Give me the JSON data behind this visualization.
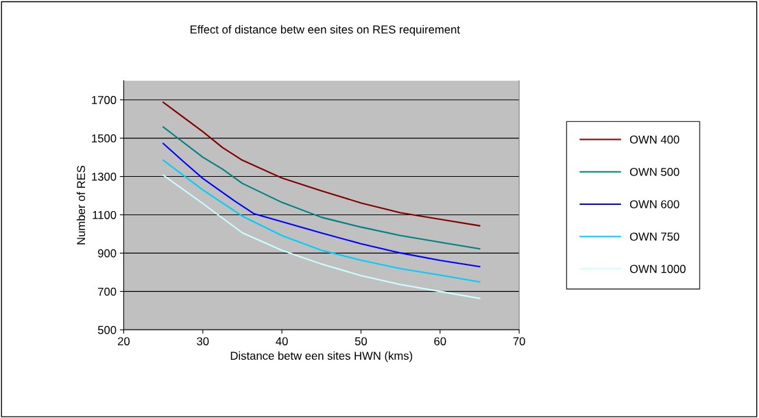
{
  "chart_data": {
    "type": "line",
    "title": "Effect of distance betw een sites on RES requirement",
    "xlabel": "Distance betw een sites HWN (kms)",
    "ylabel": "Number of RES",
    "xlim": [
      20,
      70
    ],
    "xticks": [
      20,
      30,
      40,
      50,
      60,
      70
    ],
    "ylim": [
      500,
      1800
    ],
    "yticks": [
      500,
      700,
      900,
      1100,
      1300,
      1500,
      1700
    ],
    "grid": "y",
    "legend": "right",
    "marker": "none",
    "line_style": "solid",
    "series": [
      {
        "name": "OWN 400",
        "color": "#800000",
        "x": [
          25,
          30,
          32.5,
          35,
          40,
          45,
          50,
          55,
          60,
          65
        ],
        "values": [
          1687,
          1534,
          1451,
          1385,
          1292,
          1225,
          1162,
          1111,
          1077,
          1043
        ]
      },
      {
        "name": "OWN 500",
        "color": "#008080",
        "x": [
          25,
          30,
          32.5,
          35,
          40,
          45,
          50,
          55,
          60,
          65
        ],
        "values": [
          1558,
          1401,
          1338,
          1264,
          1165,
          1087,
          1036,
          992,
          957,
          923
        ]
      },
      {
        "name": "OWN 600",
        "color": "#0000ff",
        "x": [
          25,
          27.5,
          30,
          34,
          36.5,
          40,
          45,
          50,
          55,
          60,
          65
        ],
        "values": [
          1472,
          1380,
          1290,
          1173,
          1105,
          1064,
          1005,
          949,
          901,
          862,
          830
        ]
      },
      {
        "name": "OWN 750",
        "color": "#00ccff",
        "x": [
          25,
          30,
          35,
          40,
          45,
          50,
          55,
          60,
          65
        ],
        "values": [
          1385,
          1230,
          1093,
          992,
          915,
          863,
          819,
          785,
          750
        ]
      },
      {
        "name": "OWN 1000",
        "color": "#ccffff",
        "x": [
          25,
          30,
          35,
          40,
          45,
          50,
          55,
          60,
          65
        ],
        "values": [
          1307,
          1159,
          1006,
          915,
          843,
          783,
          736,
          700,
          664
        ]
      }
    ]
  }
}
